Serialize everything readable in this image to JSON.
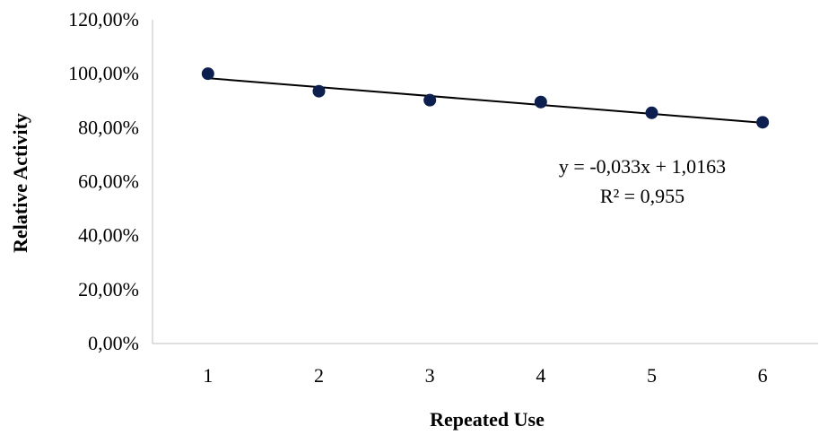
{
  "chart_data": {
    "type": "scatter",
    "title": "",
    "xlabel": "Repeated Use",
    "ylabel": "Relative Activity",
    "x": [
      1,
      2,
      3,
      4,
      5,
      6
    ],
    "y": [
      1.0,
      0.935,
      0.902,
      0.895,
      0.855,
      0.82
    ],
    "xlim": [
      0.5,
      6.5
    ],
    "ylim": [
      0,
      1.2
    ],
    "y_ticks": [
      0,
      0.2,
      0.4,
      0.6,
      0.8,
      1.0,
      1.2
    ],
    "y_tick_labels": [
      "0,00%",
      "20,00%",
      "40,00%",
      "60,00%",
      "80,00%",
      "100,00%",
      "120,00%"
    ],
    "x_tick_labels": [
      "1",
      "2",
      "3",
      "4",
      "5",
      "6"
    ],
    "trendline": {
      "slope": -0.033,
      "intercept": 1.0163,
      "equation": "y = -0,033x + 1,0163",
      "r2": "R² = 0,955"
    },
    "marker_color": "#0d1f4f",
    "line_color": "#000000",
    "grid": false,
    "legend": "none"
  }
}
